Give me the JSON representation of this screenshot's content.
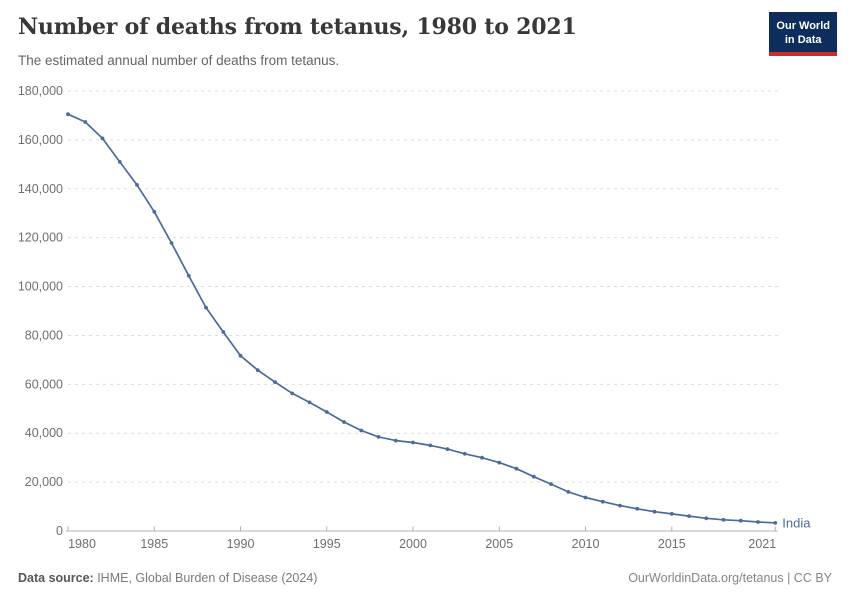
{
  "header": {
    "title": "Number of deaths from tetanus, 1980 to 2021",
    "subtitle": "The estimated annual number of deaths from tetanus.",
    "logo": {
      "line1": "Our World",
      "line2": "in Data"
    }
  },
  "colors": {
    "line": "#4c6a9c",
    "entity_label": "#4c6a9c",
    "gridline": "#dddddd",
    "axis_line": "#b3b3b3",
    "tick_label": "#6e6e6e",
    "logo_navy": "#0d2e5c",
    "logo_red": "#cb2d27"
  },
  "chart_data": {
    "type": "line",
    "title": "Number of deaths from tetanus, 1980 to 2021",
    "subtitle": "The estimated annual number of deaths from tetanus.",
    "xlabel": "",
    "ylabel": "",
    "xlim": [
      1980,
      2021
    ],
    "ylim": [
      0,
      180000
    ],
    "grid": "horizontal-dashed",
    "legend_position": "end-of-line-label",
    "x_ticks": [
      1980,
      1985,
      1990,
      1995,
      2000,
      2005,
      2010,
      2015,
      2021
    ],
    "y_ticks": [
      0,
      20000,
      40000,
      60000,
      80000,
      100000,
      120000,
      140000,
      160000,
      180000
    ],
    "x": [
      1980,
      1981,
      1982,
      1983,
      1984,
      1985,
      1986,
      1987,
      1988,
      1989,
      1990,
      1991,
      1992,
      1993,
      1994,
      1995,
      1996,
      1997,
      1998,
      1999,
      2000,
      2001,
      2002,
      2003,
      2004,
      2005,
      2006,
      2007,
      2008,
      2009,
      2010,
      2011,
      2012,
      2013,
      2014,
      2015,
      2016,
      2017,
      2018,
      2019,
      2020,
      2021
    ],
    "series": [
      {
        "name": "India",
        "color": "#4c6a9c",
        "values": [
          170500,
          167300,
          160600,
          151000,
          141600,
          130600,
          117800,
          104400,
          91400,
          81400,
          71700,
          65800,
          60900,
          56300,
          52600,
          48700,
          44600,
          41100,
          38500,
          37000,
          36200,
          35000,
          33500,
          31600,
          30000,
          28000,
          25500,
          22200,
          19200,
          16000,
          13700,
          12000,
          10400,
          9100,
          7900,
          7000,
          6100,
          5200,
          4600,
          4200,
          3700,
          3300
        ]
      }
    ]
  },
  "footer": {
    "source_label": "Data source:",
    "source_value": " IHME, Global Burden of Disease (2024)",
    "attribution": "OurWorldinData.org/tetanus | CC BY"
  }
}
